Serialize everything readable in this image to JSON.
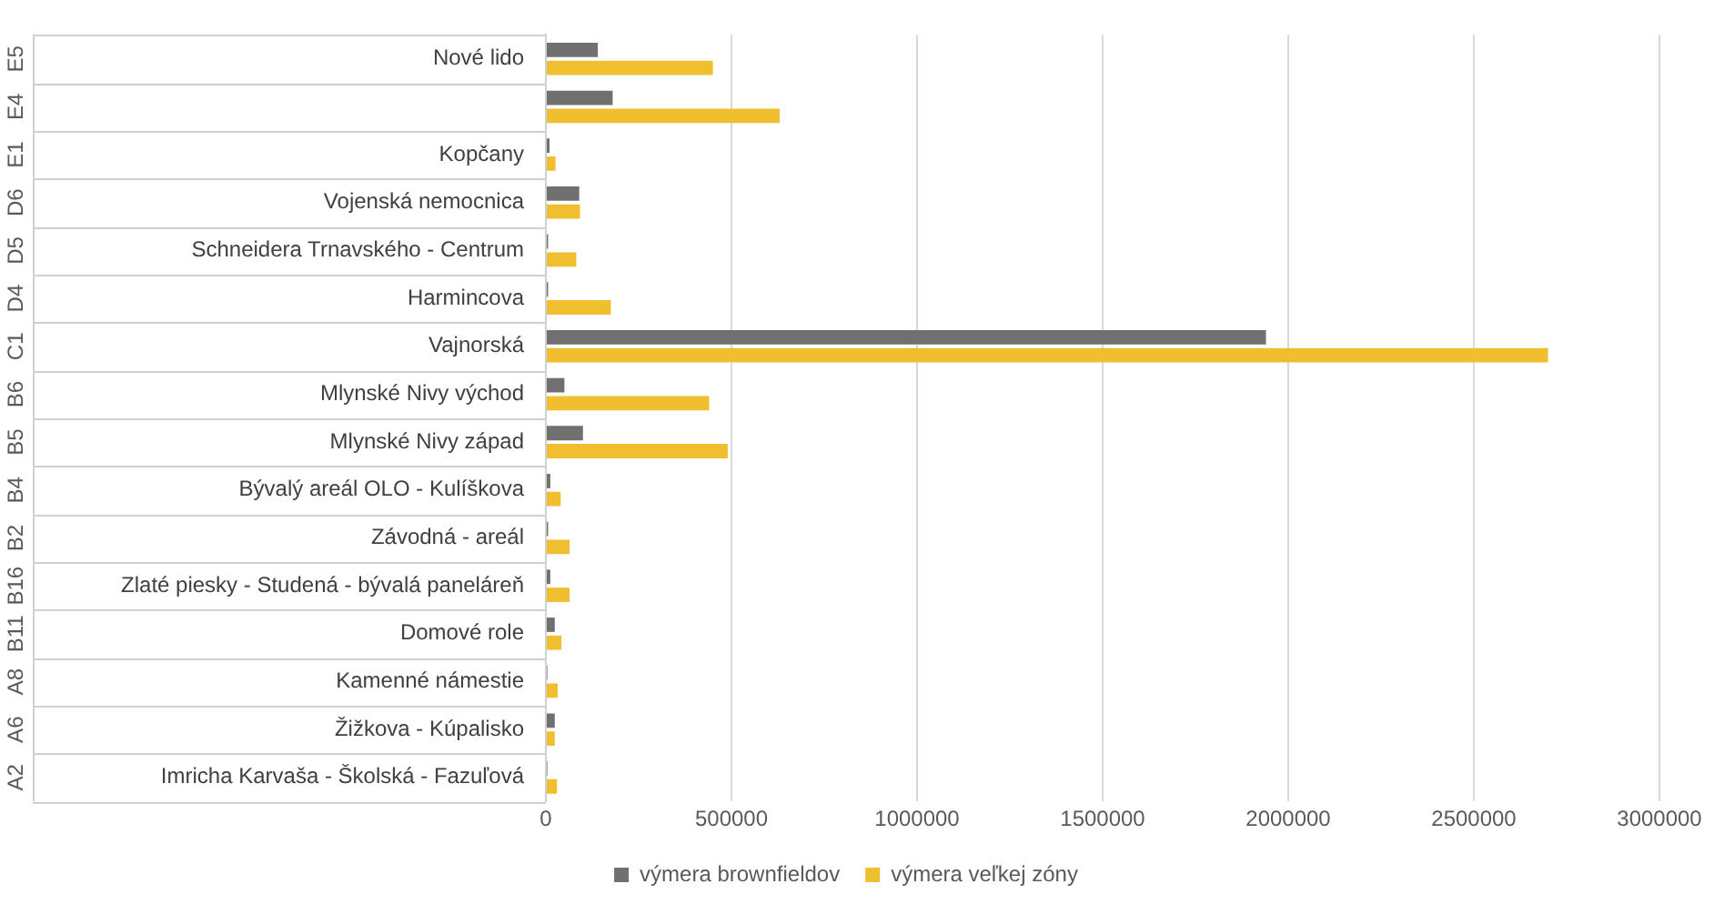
{
  "chart_data": {
    "type": "bar",
    "orientation": "horizontal",
    "categories": [
      "Nové lido",
      null,
      "Kopčany",
      "Vojenská nemocnica",
      "Schneidera Trnavského - Centrum",
      "Harmincova",
      "Vajnorská",
      "Mlynské Nivy východ",
      "Mlynské Nivy západ",
      "Bývalý areál OLO - Kulíškova",
      "Závodná - areál",
      "Zlaté piesky - Studená - bývalá paneláreň",
      "Domové role",
      "Kamenné námestie",
      "Žižkova - Kúpalisko",
      "Imricha Karvaša - Školská - Fazuľová"
    ],
    "y2_categories": [
      "E5",
      "E4",
      "E1",
      "D6",
      "D5",
      "D4",
      "C1",
      "B6",
      "B5",
      "B4",
      "B2",
      "B16",
      "B11",
      "A8",
      "A6",
      "A2"
    ],
    "series": [
      {
        "name": "výmera brownfieldov",
        "color": "#707070",
        "values": [
          140000,
          180000,
          10000,
          90000,
          6000,
          6000,
          1940000,
          50000,
          100000,
          12000,
          6000,
          12000,
          24000,
          4000,
          24000,
          4000
        ]
      },
      {
        "name": "výmera veľkej zóny",
        "color": "#f0bf30",
        "values": [
          450000,
          630000,
          26000,
          92000,
          82000,
          175000,
          2700000,
          440000,
          490000,
          40000,
          64000,
          64000,
          42000,
          32000,
          24000,
          30000
        ]
      }
    ],
    "xlim": [
      0,
      3000000
    ],
    "xticks": [
      0,
      500000,
      1000000,
      1500000,
      2000000,
      2500000,
      3000000
    ],
    "grid": "x",
    "legend": "bottom"
  }
}
